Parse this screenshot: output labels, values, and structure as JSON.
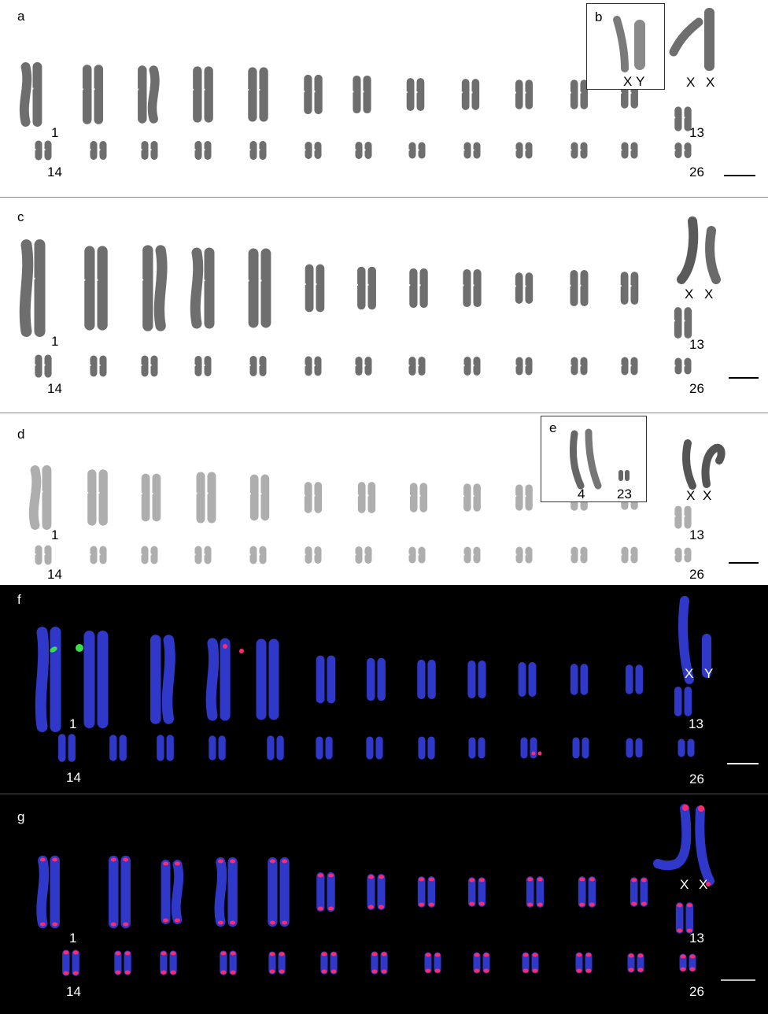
{
  "panels": {
    "a": {
      "letter": "a",
      "label_1": "1",
      "label_13": "13",
      "label_14": "14",
      "label_26": "26",
      "sex_label_1": "X",
      "sex_label_2": "X"
    },
    "b": {
      "letter": "b",
      "sex_label_1": "X",
      "sex_label_2": "Y"
    },
    "c": {
      "letter": "c",
      "label_1": "1",
      "label_13": "13",
      "label_14": "14",
      "label_26": "26",
      "sex_label_1": "X",
      "sex_label_2": "X"
    },
    "d": {
      "letter": "d",
      "label_1": "1",
      "label_13": "13",
      "label_14": "14",
      "label_26": "26",
      "sex_label_1": "X",
      "sex_label_2": "X"
    },
    "e": {
      "letter": "e",
      "label_4": "4",
      "label_23": "23"
    },
    "f": {
      "letter": "f",
      "label_1": "1",
      "label_13": "13",
      "label_14": "14",
      "label_26": "26",
      "sex_label_1": "X",
      "sex_label_2": "Y"
    },
    "g": {
      "letter": "g",
      "label_1": "1",
      "label_13": "13",
      "label_14": "14",
      "label_26": "26",
      "sex_label_1": "X",
      "sex_label_2": "X"
    }
  },
  "colors": {
    "chromosome_gray": "#6e6e6e",
    "chromosome_blue": "#2f38c8",
    "fish_green": "#39e04a",
    "fish_red": "#ff2a6e",
    "dark_background": "#000000"
  }
}
